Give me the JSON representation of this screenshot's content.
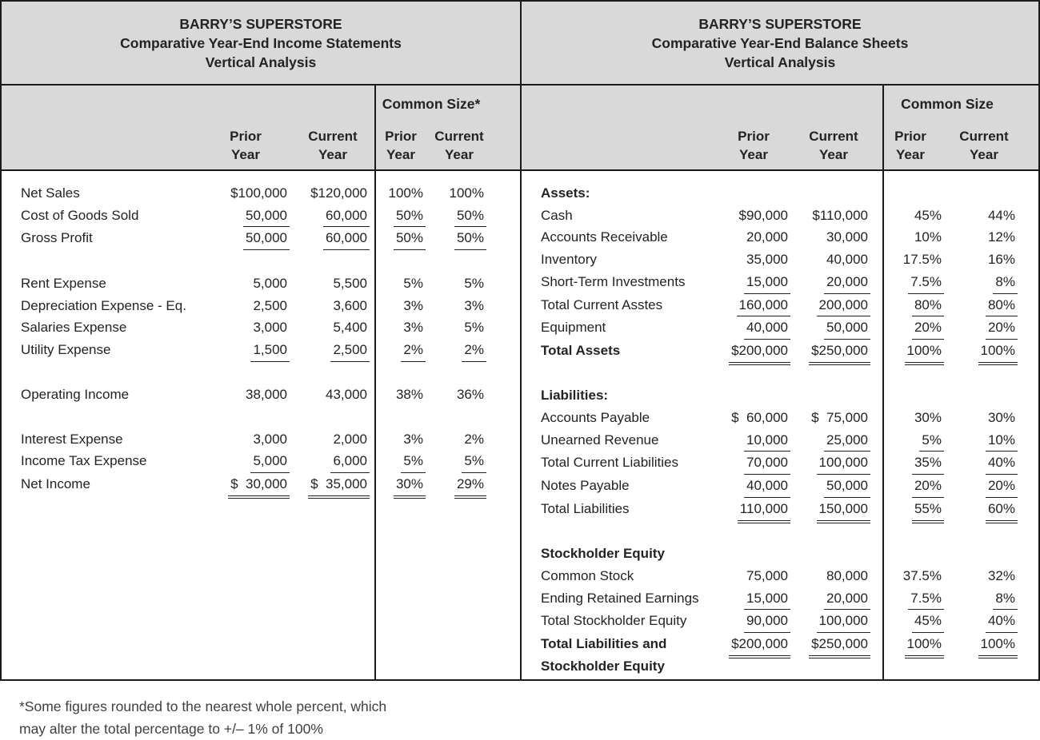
{
  "colors": {
    "header_bg": "#d9d9d9",
    "border": "#1a1a1a",
    "text": "#232323"
  },
  "income_statement": {
    "title_lines": [
      "BARRY’S SUPERSTORE",
      "Comparative Year-End Income Statements",
      "Vertical Analysis"
    ],
    "common_size_label": "Common Size*",
    "columns": {
      "prior": "Prior\nYear",
      "current": "Current\nYear",
      "cs_prior": "Prior\nYear",
      "cs_current": "Current\nYear"
    },
    "rows": [
      {
        "label": "Net Sales",
        "prior": "$100,000",
        "current": "$120,000",
        "cs_prior": "100%",
        "cs_current": "100%"
      },
      {
        "label": "Cost of Goods Sold",
        "prior": "50,000",
        "current": "60,000",
        "cs_prior": "50%",
        "cs_current": "50%",
        "underline": "single"
      },
      {
        "label": "Gross Profit",
        "prior": "50,000",
        "current": "60,000",
        "cs_prior": "50%",
        "cs_current": "50%",
        "underline": "single"
      },
      {
        "spacer": true
      },
      {
        "label": "Rent Expense",
        "prior": "5,000",
        "current": "5,500",
        "cs_prior": "5%",
        "cs_current": "5%"
      },
      {
        "label": "Depreciation Expense - Eq.",
        "prior": "2,500",
        "current": "3,600",
        "cs_prior": "3%",
        "cs_current": "3%"
      },
      {
        "label": "Salaries Expense",
        "prior": "3,000",
        "current": "5,400",
        "cs_prior": "3%",
        "cs_current": "5%"
      },
      {
        "label": "Utility Expense",
        "prior": "1,500",
        "current": "2,500",
        "cs_prior": "2%",
        "cs_current": "2%",
        "underline": "single"
      },
      {
        "spacer": true
      },
      {
        "label": "Operating Income",
        "prior": "38,000",
        "current": "43,000",
        "cs_prior": "38%",
        "cs_current": "36%"
      },
      {
        "spacer": true
      },
      {
        "label": "Interest Expense",
        "prior": "3,000",
        "current": "2,000",
        "cs_prior": "3%",
        "cs_current": "2%"
      },
      {
        "label": "Income Tax Expense",
        "prior": "5,000",
        "current": "6,000",
        "cs_prior": "5%",
        "cs_current": "5%",
        "underline": "single"
      },
      {
        "label": "Net Income",
        "prior": "$  30,000",
        "current": "$  35,000",
        "cs_prior": "30%",
        "cs_current": "29%",
        "underline": "double"
      }
    ]
  },
  "balance_sheet": {
    "title_lines": [
      "BARRY’S SUPERSTORE",
      "Comparative Year-End Balance Sheets",
      "Vertical Analysis"
    ],
    "common_size_label": "Common Size",
    "columns": {
      "prior": "Prior\nYear",
      "current": "Current\nYear",
      "cs_prior": "Prior\nYear",
      "cs_current": "Current\nYear"
    },
    "rows": [
      {
        "label": "Assets:",
        "bold": true
      },
      {
        "label": "Cash",
        "prior": "$90,000",
        "current": "$110,000",
        "cs_prior": "45%",
        "cs_current": "44%"
      },
      {
        "label": "Accounts Receivable",
        "prior": "20,000",
        "current": "30,000",
        "cs_prior": "10%",
        "cs_current": "12%"
      },
      {
        "label": "Inventory",
        "prior": "35,000",
        "current": "40,000",
        "cs_prior": "17.5%",
        "cs_current": "16%"
      },
      {
        "label": "Short-Term Investments",
        "prior": "15,000",
        "current": "20,000",
        "cs_prior": "7.5%",
        "cs_current": "8%",
        "underline": "single"
      },
      {
        "label": "Total Current Asstes",
        "prior": "160,000",
        "current": "200,000",
        "cs_prior": "80%",
        "cs_current": "80%",
        "underline": "single"
      },
      {
        "label": "Equipment",
        "prior": "40,000",
        "current": "50,000",
        "cs_prior": "20%",
        "cs_current": "20%",
        "underline": "single"
      },
      {
        "label": "Total Assets",
        "bold": true,
        "prior": "$200,000",
        "current": "$250,000",
        "cs_prior": "100%",
        "cs_current": "100%",
        "underline": "double"
      },
      {
        "spacer": true
      },
      {
        "label": "Liabilities:",
        "bold": true
      },
      {
        "label": "Accounts Payable",
        "prior": "$  60,000",
        "current": "$  75,000",
        "cs_prior": "30%",
        "cs_current": "30%"
      },
      {
        "label": "Unearned Revenue",
        "prior": "10,000",
        "current": "25,000",
        "cs_prior": "5%",
        "cs_current": "10%",
        "underline": "single"
      },
      {
        "label": "Total Current Liabilities",
        "prior": "70,000",
        "current": "100,000",
        "cs_prior": "35%",
        "cs_current": "40%",
        "underline": "single"
      },
      {
        "label": "Notes Payable",
        "prior": "40,000",
        "current": "50,000",
        "cs_prior": "20%",
        "cs_current": "20%",
        "underline": "single"
      },
      {
        "label": "Total Liabilities",
        "prior": "110,000",
        "current": "150,000",
        "cs_prior": "55%",
        "cs_current": "60%",
        "underline": "double"
      },
      {
        "spacer": true
      },
      {
        "label": "Stockholder Equity",
        "bold": true
      },
      {
        "label": "Common Stock",
        "prior": "75,000",
        "current": "80,000",
        "cs_prior": "37.5%",
        "cs_current": "32%"
      },
      {
        "label": "Ending Retained Earnings",
        "prior": "15,000",
        "current": "20,000",
        "cs_prior": "7.5%",
        "cs_current": "8%",
        "underline": "single"
      },
      {
        "label": "Total Stockholder Equity",
        "prior": "90,000",
        "current": "100,000",
        "cs_prior": "45%",
        "cs_current": "40%",
        "underline": "single"
      },
      {
        "label": "Total Liabilities and\nStockholder Equity",
        "bold": true,
        "prior": "$200,000",
        "current": "$250,000",
        "cs_prior": "100%",
        "cs_current": "100%",
        "underline": "double"
      }
    ]
  },
  "footnote": {
    "lines": [
      "*Some figures rounded to the nearest whole percent, which",
      "may alter the total percentage to +/– 1% of 100%"
    ]
  }
}
